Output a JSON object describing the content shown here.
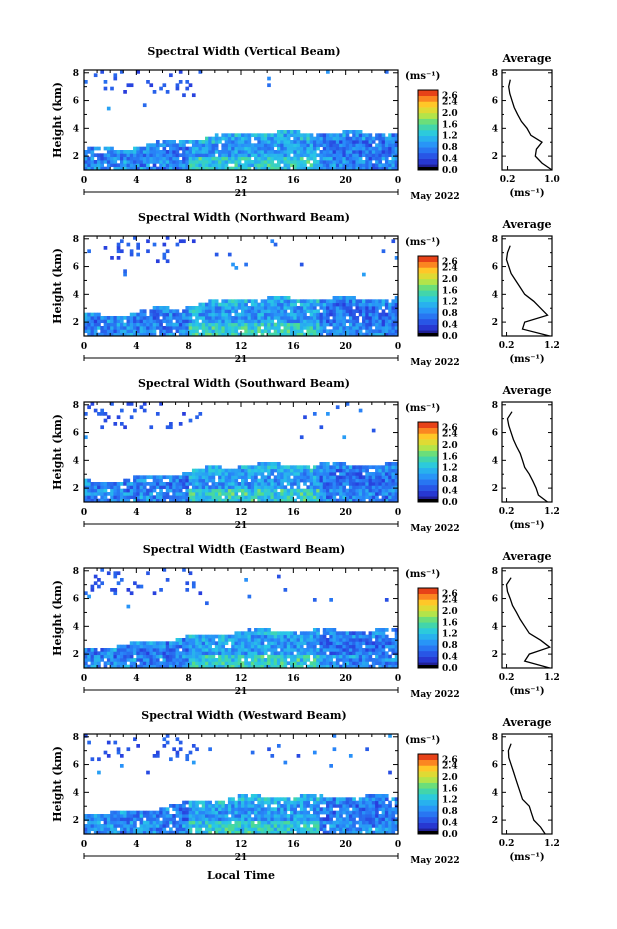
{
  "figure": {
    "xaxis_label": "Local Time"
  },
  "chart_data": [
    {
      "type": "heatmap",
      "title": "Spectral Width (Vertical Beam)",
      "ylabel": "Height (km)",
      "x_ticks": [
        "0",
        "4",
        "8",
        "12",
        "16",
        "20",
        "0"
      ],
      "y_ticks": [
        "2",
        "4",
        "6",
        "8"
      ],
      "xlim": [
        0,
        24
      ],
      "ylim": [
        1,
        8.2
      ],
      "date_day": "21",
      "date_label": "May 2022",
      "colorbar": {
        "unit": "(ms⁻¹)",
        "ticks": [
          "2.6",
          "2.4",
          "2.0",
          "1.6",
          "1.2",
          "0.8",
          "0.4",
          "0.0"
        ],
        "range": [
          0,
          2.8
        ]
      },
      "profile": {
        "title": "Average",
        "xlabel": "(ms⁻¹)",
        "x_ticks": [
          "0.2",
          "1.0"
        ],
        "xlim": [
          0.1,
          1.0
        ],
        "y_ticks": [
          "2",
          "4",
          "6",
          "8"
        ],
        "ylim": [
          1,
          8.2
        ],
        "heights": [
          1.0,
          1.5,
          2.0,
          2.5,
          3.0,
          3.5,
          4.0,
          4.5,
          5.0,
          5.5,
          6.0,
          6.5,
          7.0,
          7.5
        ],
        "values": [
          1.0,
          0.82,
          0.7,
          0.72,
          0.82,
          0.62,
          0.55,
          0.45,
          0.38,
          0.32,
          0.28,
          0.24,
          0.22,
          0.25
        ]
      }
    },
    {
      "type": "heatmap",
      "title": "Spectral Width (Northward Beam)",
      "ylabel": "Height (km)",
      "x_ticks": [
        "0",
        "4",
        "8",
        "12",
        "16",
        "20",
        "0"
      ],
      "y_ticks": [
        "2",
        "4",
        "6",
        "8"
      ],
      "xlim": [
        0,
        24
      ],
      "ylim": [
        1,
        8.2
      ],
      "date_day": "21",
      "date_label": "May 2022",
      "colorbar": {
        "unit": "(ms⁻¹)",
        "ticks": [
          "2.6",
          "2.4",
          "2.0",
          "1.6",
          "1.2",
          "0.8",
          "0.4",
          "0.0"
        ],
        "range": [
          0,
          2.8
        ]
      },
      "profile": {
        "title": "Average",
        "xlabel": "(ms⁻¹)",
        "x_ticks": [
          "0.2",
          "1.2"
        ],
        "xlim": [
          0.1,
          1.2
        ],
        "y_ticks": [
          "2",
          "4",
          "6",
          "8"
        ],
        "ylim": [
          1,
          8.2
        ],
        "heights": [
          1.0,
          1.5,
          2.0,
          2.5,
          3.0,
          3.5,
          4.0,
          4.5,
          5.0,
          5.5,
          6.0,
          6.5,
          7.0,
          7.5
        ],
        "values": [
          1.15,
          0.55,
          0.6,
          1.1,
          0.95,
          0.8,
          0.6,
          0.5,
          0.4,
          0.3,
          0.25,
          0.2,
          0.22,
          0.28
        ]
      }
    },
    {
      "type": "heatmap",
      "title": "Spectral Width (Southward Beam)",
      "ylabel": "Height (km)",
      "x_ticks": [
        "0",
        "4",
        "8",
        "12",
        "16",
        "20",
        "0"
      ],
      "y_ticks": [
        "2",
        "4",
        "6",
        "8"
      ],
      "xlim": [
        0,
        24
      ],
      "ylim": [
        1,
        8.2
      ],
      "date_day": "21",
      "date_label": "May 2022",
      "colorbar": {
        "unit": "(ms⁻¹)",
        "ticks": [
          "2.6",
          "2.4",
          "2.0",
          "1.6",
          "1.2",
          "0.8",
          "0.4",
          "0.0"
        ],
        "range": [
          0,
          2.8
        ]
      },
      "profile": {
        "title": "Average",
        "xlabel": "(ms⁻¹)",
        "x_ticks": [
          "0.2",
          "1.2"
        ],
        "xlim": [
          0.1,
          1.2
        ],
        "y_ticks": [
          "2",
          "4",
          "6",
          "8"
        ],
        "ylim": [
          1,
          8.2
        ],
        "heights": [
          1.0,
          1.5,
          2.0,
          2.5,
          3.0,
          3.5,
          4.0,
          4.5,
          5.0,
          5.5,
          6.0,
          6.5,
          7.0,
          7.5
        ],
        "values": [
          1.1,
          0.9,
          0.85,
          0.78,
          0.7,
          0.6,
          0.55,
          0.5,
          0.42,
          0.35,
          0.3,
          0.25,
          0.22,
          0.32
        ]
      }
    },
    {
      "type": "heatmap",
      "title": "Spectral Width (Eastward Beam)",
      "ylabel": "Height (km)",
      "x_ticks": [
        "0",
        "4",
        "8",
        "12",
        "16",
        "20",
        "0"
      ],
      "y_ticks": [
        "2",
        "4",
        "6",
        "8"
      ],
      "xlim": [
        0,
        24
      ],
      "ylim": [
        1,
        8.2
      ],
      "date_day": "21",
      "date_label": "May 2022",
      "colorbar": {
        "unit": "(ms⁻¹)",
        "ticks": [
          "2.6",
          "2.4",
          "2.0",
          "1.6",
          "1.2",
          "0.8",
          "0.4",
          "0.0"
        ],
        "range": [
          0,
          2.8
        ]
      },
      "profile": {
        "title": "Average",
        "xlabel": "(ms⁻¹)",
        "x_ticks": [
          "0.2",
          "1.2"
        ],
        "xlim": [
          0.1,
          1.2
        ],
        "y_ticks": [
          "2",
          "4",
          "6",
          "8"
        ],
        "ylim": [
          1,
          8.2
        ],
        "heights": [
          1.0,
          1.5,
          2.0,
          2.5,
          3.0,
          3.5,
          4.0,
          4.5,
          5.0,
          5.5,
          6.0,
          6.5,
          7.0,
          7.5
        ],
        "values": [
          1.15,
          0.6,
          0.7,
          1.15,
          0.95,
          0.7,
          0.6,
          0.5,
          0.42,
          0.33,
          0.28,
          0.22,
          0.2,
          0.3
        ]
      }
    },
    {
      "type": "heatmap",
      "title": "Spectral Width (Westward Beam)",
      "ylabel": "Height (km)",
      "x_ticks": [
        "0",
        "4",
        "8",
        "12",
        "16",
        "20",
        "0"
      ],
      "y_ticks": [
        "2",
        "4",
        "6",
        "8"
      ],
      "xlim": [
        0,
        24
      ],
      "ylim": [
        1,
        8.2
      ],
      "date_day": "21",
      "date_label": "May 2022",
      "colorbar": {
        "unit": "(ms⁻¹)",
        "ticks": [
          "2.6",
          "2.4",
          "2.0",
          "1.6",
          "1.2",
          "0.8",
          "0.4",
          "0.0"
        ],
        "range": [
          0,
          2.8
        ]
      },
      "profile": {
        "title": "Average",
        "xlabel": "(ms⁻¹)",
        "x_ticks": [
          "0.2",
          "1.2"
        ],
        "xlim": [
          0.1,
          1.2
        ],
        "y_ticks": [
          "2",
          "4",
          "6",
          "8"
        ],
        "ylim": [
          1,
          8.2
        ],
        "heights": [
          1.0,
          1.5,
          2.0,
          2.5,
          3.0,
          3.5,
          4.0,
          4.5,
          5.0,
          5.5,
          6.0,
          6.5,
          7.0,
          7.5
        ],
        "values": [
          1.05,
          0.95,
          0.8,
          0.75,
          0.7,
          0.55,
          0.5,
          0.45,
          0.4,
          0.35,
          0.3,
          0.25,
          0.24,
          0.3
        ]
      }
    }
  ]
}
